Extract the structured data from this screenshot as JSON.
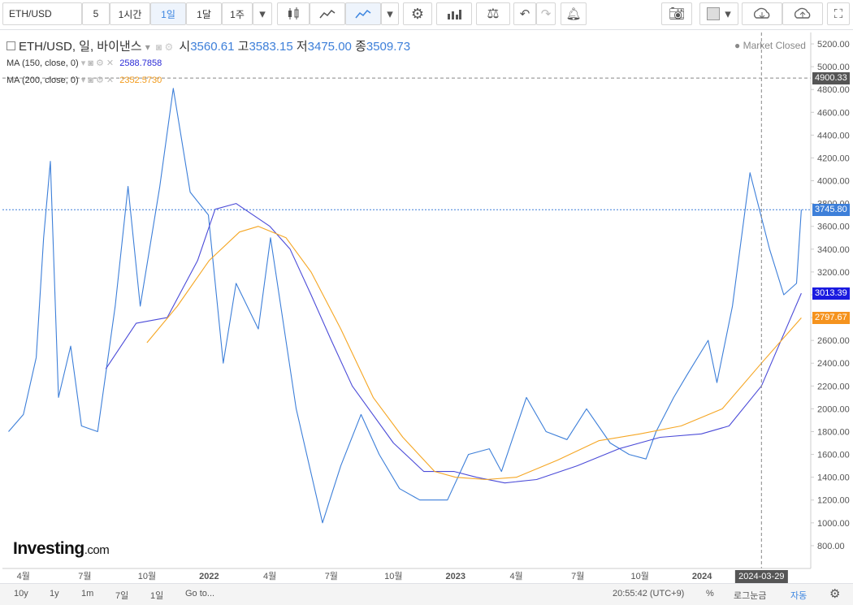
{
  "toolbar": {
    "symbol": "ETH/USD",
    "intervals": [
      "5",
      "1시간",
      "1일",
      "1달",
      "1주"
    ],
    "active_interval": "1일"
  },
  "legend": {
    "title": "ETH/USD, 일, 바이낸스",
    "open_label": "시",
    "open": "3560.61",
    "high_label": "고",
    "high": "3583.15",
    "low_label": "저",
    "low": "3475.00",
    "close_label": "종",
    "close": "3509.73",
    "ma150": {
      "label": "MA (150, close, 0)",
      "value": "2588.7858",
      "color": "#2b2bd6"
    },
    "ma200": {
      "label": "MA (200, close, 0)",
      "value": "2352.5730",
      "color": "#f29b1c"
    },
    "market_status": "Market Closed"
  },
  "price_tags": {
    "crosshair": "4900.33",
    "last": "3745.80",
    "ma150": "3013.39",
    "ma200": "2797.67",
    "date": "2024-03-29"
  },
  "colors": {
    "price": "#3d7fd9",
    "ma150": "#4b4bd8",
    "ma200": "#f5a623",
    "last_tag": "#3d7fd9",
    "ma150_tag": "#1a1ae0",
    "ma200_tag": "#f5931e",
    "cross_tag": "#555555"
  },
  "logo": {
    "main": "Investing",
    "suffix": ".com"
  },
  "bottom": {
    "ranges": [
      "10y",
      "1y",
      "1m",
      "7일",
      "1일",
      "Go to..."
    ],
    "time": "20:55:42 (UTC+9)",
    "pct": "%",
    "log": "로그눈금",
    "auto": "자동"
  },
  "chart_data": {
    "type": "line",
    "x_tick_labels": [
      "4월",
      "7월",
      "10월",
      "2022",
      "4월",
      "7월",
      "10월",
      "2023",
      "4월",
      "7월",
      "10월",
      "2024"
    ],
    "y_ticks": [
      800,
      1000,
      1200,
      1400,
      1600,
      1800,
      2000,
      2200,
      2400,
      2600,
      2800,
      3000,
      3200,
      3400,
      3600,
      3800,
      4000,
      4200,
      4400,
      4600,
      4800,
      5000,
      5200
    ],
    "ylim": [
      600,
      5300
    ],
    "series": [
      {
        "name": "ETH/USD",
        "x": [
          "2021-03-10",
          "2021-04-01",
          "2021-04-20",
          "2021-05-01",
          "2021-05-11",
          "2021-05-23",
          "2021-06-10",
          "2021-06-26",
          "2021-07-20",
          "2021-08-15",
          "2021-09-03",
          "2021-09-21",
          "2021-10-20",
          "2021-11-09",
          "2021-12-04",
          "2021-12-31",
          "2022-01-22",
          "2022-02-10",
          "2022-03-15",
          "2022-04-02",
          "2022-05-10",
          "2022-06-18",
          "2022-07-15",
          "2022-08-14",
          "2022-09-10",
          "2022-10-10",
          "2022-11-09",
          "2022-12-20",
          "2023-01-20",
          "2023-02-20",
          "2023-03-10",
          "2023-04-16",
          "2023-05-15",
          "2023-06-15",
          "2023-07-14",
          "2023-08-18",
          "2023-09-15",
          "2023-10-10",
          "2023-10-25",
          "2023-11-20",
          "2023-12-10",
          "2024-01-10",
          "2024-01-23",
          "2024-02-15",
          "2024-03-12",
          "2024-04-10",
          "2024-05-01",
          "2024-05-20",
          "2024-05-27"
        ],
        "y": [
          1800,
          1950,
          2450,
          3500,
          4170,
          2100,
          2550,
          1850,
          1800,
          2900,
          3950,
          2900,
          3950,
          4810,
          3900,
          3700,
          2400,
          3100,
          2700,
          3500,
          2000,
          1000,
          1500,
          1950,
          1600,
          1300,
          1200,
          1200,
          1600,
          1650,
          1450,
          2100,
          1800,
          1730,
          2000,
          1700,
          1600,
          1560,
          1800,
          2100,
          2300,
          2600,
          2230,
          2900,
          4070,
          3400,
          3000,
          3100,
          3745.8
        ]
      },
      {
        "name": "MA (150, close, 0)",
        "x": [
          "2021-08-01",
          "2021-09-15",
          "2021-10-31",
          "2021-12-15",
          "2022-01-10",
          "2022-02-10",
          "2022-04-01",
          "2022-05-01",
          "2022-06-01",
          "2022-07-01",
          "2022-08-01",
          "2022-10-01",
          "2022-11-15",
          "2022-12-30",
          "2023-02-01",
          "2023-03-15",
          "2023-05-01",
          "2023-06-30",
          "2023-08-31",
          "2023-10-31",
          "2023-12-31",
          "2024-02-10",
          "2024-03-29",
          "2024-05-27"
        ],
        "y": [
          2350,
          2750,
          2800,
          3300,
          3750,
          3800,
          3600,
          3400,
          3000,
          2600,
          2200,
          1700,
          1450,
          1450,
          1400,
          1350,
          1380,
          1500,
          1650,
          1750,
          1780,
          1850,
          2200,
          3013.39
        ]
      },
      {
        "name": "MA (200, close, 0)",
        "x": [
          "2021-10-01",
          "2021-11-15",
          "2022-01-01",
          "2022-02-15",
          "2022-03-15",
          "2022-04-25",
          "2022-06-01",
          "2022-07-15",
          "2022-09-01",
          "2022-10-15",
          "2022-12-01",
          "2023-01-01",
          "2023-02-15",
          "2023-04-01",
          "2023-06-01",
          "2023-08-01",
          "2023-10-01",
          "2023-12-01",
          "2024-01-31",
          "2024-03-29",
          "2024-05-27"
        ],
        "y": [
          2580,
          2900,
          3300,
          3550,
          3600,
          3500,
          3200,
          2700,
          2100,
          1750,
          1450,
          1400,
          1380,
          1400,
          1550,
          1720,
          1780,
          1850,
          2000,
          2400,
          2797.67
        ]
      }
    ]
  }
}
